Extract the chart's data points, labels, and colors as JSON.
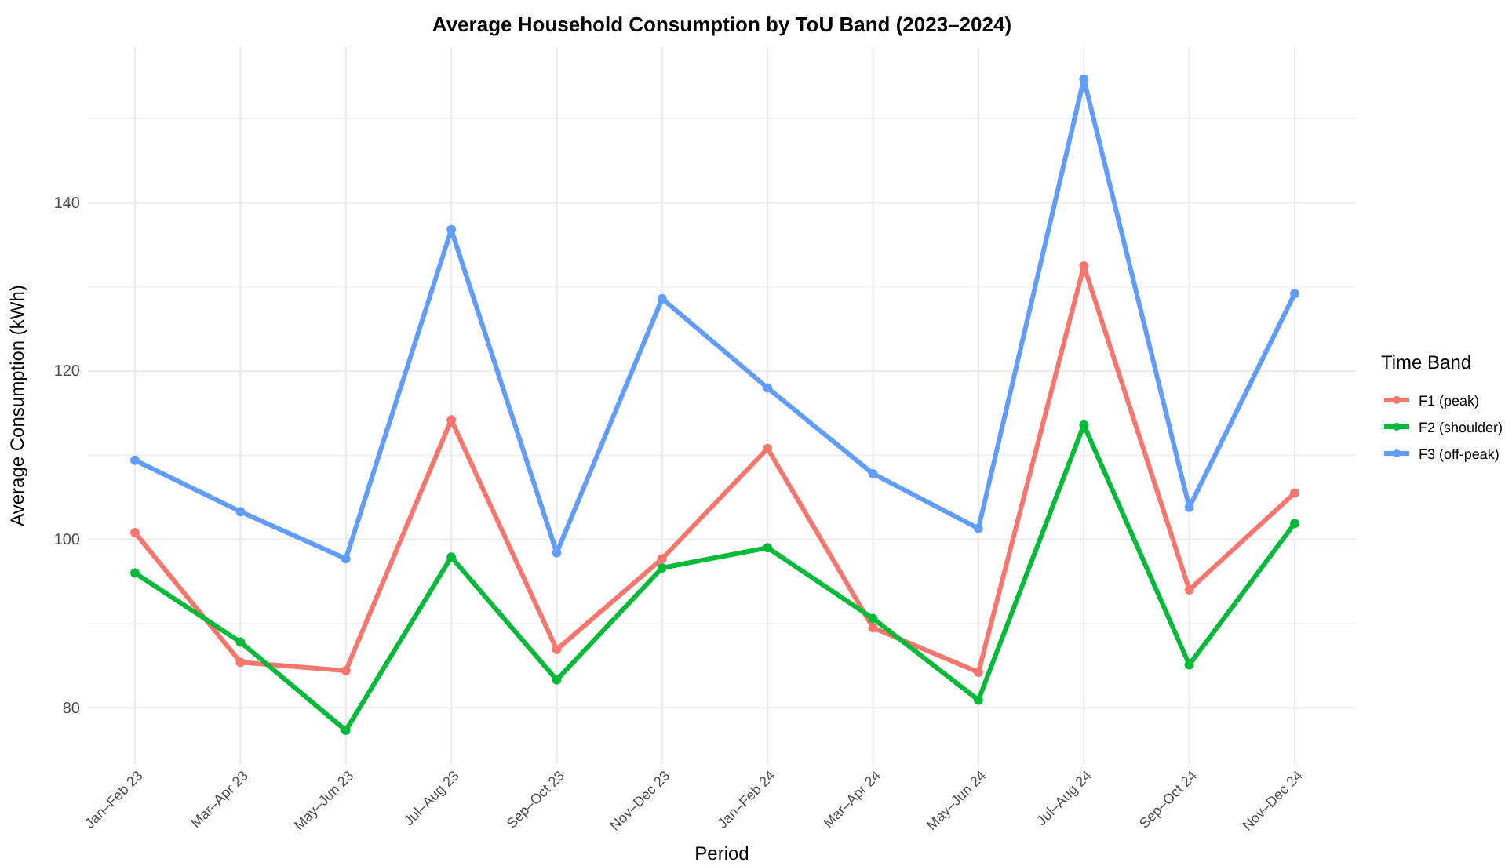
{
  "chart_data": {
    "type": "line",
    "title": "Average Household Consumption by ToU Band (2023–2024)",
    "xlabel": "Period",
    "ylabel": "Average Consumption (kWh)",
    "legend_title": "Time Band",
    "categories": [
      "Jan–Feb 23",
      "Mar–Apr 23",
      "May–Jun 23",
      "Jul–Aug 23",
      "Sep–Oct 23",
      "Nov–Dec 23",
      "Jan–Feb 24",
      "Mar–Apr 24",
      "May–Jun 24",
      "Jul–Aug 24",
      "Sep–Oct 24",
      "Nov–Dec 24"
    ],
    "series": [
      {
        "name": "F1 (peak)",
        "color": "#f8766d",
        "values": [
          100.8,
          85.4,
          84.4,
          114.2,
          86.9,
          97.7,
          110.8,
          89.5,
          84.2,
          132.5,
          94.0,
          105.5
        ]
      },
      {
        "name": "F2 (shoulder)",
        "color": "#00ba38",
        "values": [
          96.0,
          87.8,
          77.3,
          97.9,
          83.3,
          96.6,
          99.0,
          90.6,
          80.9,
          113.6,
          85.1,
          101.9
        ]
      },
      {
        "name": "F3 (off-peak)",
        "color": "#619cff",
        "values": [
          109.4,
          103.3,
          97.7,
          136.8,
          98.4,
          128.6,
          118.0,
          107.8,
          101.3,
          154.7,
          103.8,
          129.2
        ]
      }
    ],
    "ylim": [
      73.3,
      158.5
    ],
    "yticks": [
      {
        "value": 80,
        "label": "80"
      },
      {
        "value": 90,
        "label": null
      },
      {
        "value": 100,
        "label": "100"
      },
      {
        "value": 110,
        "label": null
      },
      {
        "value": 120,
        "label": "120"
      },
      {
        "value": 130,
        "label": null
      },
      {
        "value": 140,
        "label": "140"
      },
      {
        "value": 150,
        "label": null
      }
    ],
    "grid": true,
    "legend": "right",
    "marker": "circle",
    "line_style": "solid"
  }
}
